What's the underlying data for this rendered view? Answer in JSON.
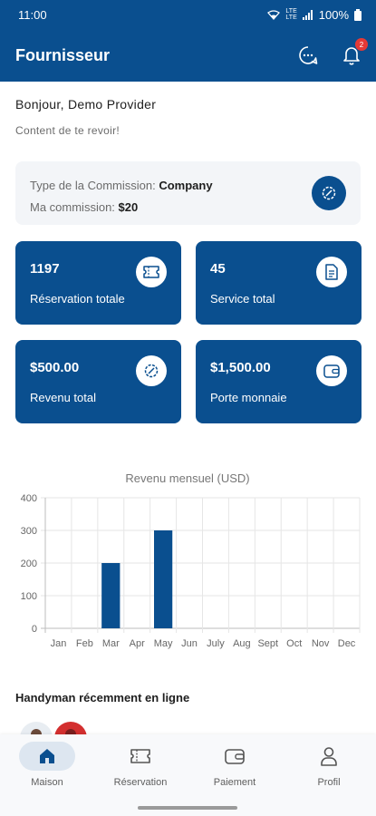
{
  "status_bar": {
    "time": "11:00",
    "network": "LTE",
    "network_sub": "LTE",
    "battery": "100%"
  },
  "app_bar": {
    "title": "Fournisseur",
    "notification_count": "2"
  },
  "greeting": {
    "hello": "Bonjour, Demo Provider",
    "subtitle": "Content de te revoir!"
  },
  "commission": {
    "type_label": "Type de la Commission: ",
    "type_value": "Company",
    "amount_label": "Ma commission: ",
    "amount_value": "$20"
  },
  "stats": [
    {
      "value": "1197",
      "label": "Réservation totale",
      "icon": "ticket-icon"
    },
    {
      "value": "45",
      "label": "Service total",
      "icon": "document-icon"
    },
    {
      "value": "$500.00",
      "label": "Revenu total",
      "icon": "settings-icon"
    },
    {
      "value": "$1,500.00",
      "label": "Porte monnaie",
      "icon": "wallet-icon"
    }
  ],
  "chart_data": {
    "type": "bar",
    "title": "Revenu mensuel (USD)",
    "categories": [
      "Jan",
      "Feb",
      "Mar",
      "Apr",
      "May",
      "Jun",
      "July",
      "Aug",
      "Sept",
      "Oct",
      "Nov",
      "Dec"
    ],
    "values": [
      0,
      0,
      200,
      0,
      300,
      0,
      0,
      0,
      0,
      0,
      0,
      0
    ],
    "y_ticks": [
      "0",
      "100",
      "200",
      "300",
      "400"
    ],
    "ylim": [
      0,
      400
    ],
    "grid": true,
    "bar_color": "#0a4f8f"
  },
  "online": {
    "title": "Handyman récemment en ligne"
  },
  "bottom_nav": [
    {
      "label": "Maison",
      "icon": "home-icon",
      "active": true
    },
    {
      "label": "Réservation",
      "icon": "ticket-icon",
      "active": false
    },
    {
      "label": "Paiement",
      "icon": "wallet-icon",
      "active": false
    },
    {
      "label": "Profil",
      "icon": "person-icon",
      "active": false
    }
  ],
  "colors": {
    "primary": "#0a4f8f",
    "badge": "#e53935",
    "card_bg": "#f3f5f8"
  }
}
